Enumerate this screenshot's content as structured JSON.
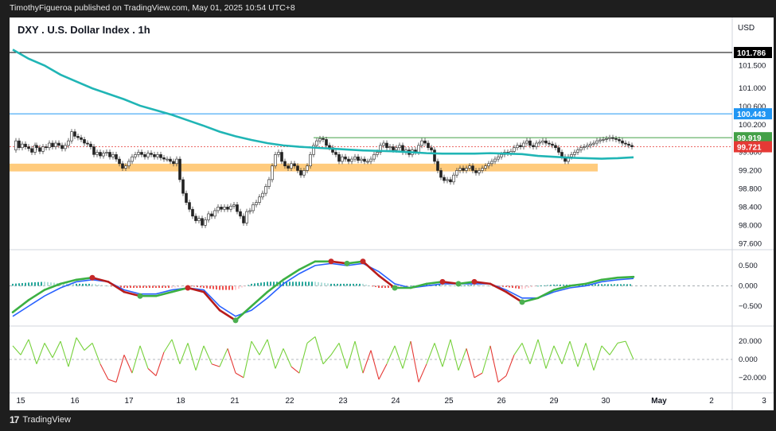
{
  "header": {
    "published": "TimothyFigueroa published on TradingView.com, May 01, 2025 10:54 UTC+8"
  },
  "footer": {
    "brand": "TradingView"
  },
  "chart_data": [
    {
      "type": "line",
      "title": "DXY . U.S. Dollar Index . 1h",
      "currency": "USD",
      "x_ticks": [
        "15",
        "16",
        "17",
        "18",
        "21",
        "22",
        "23",
        "24",
        "25",
        "26",
        "29",
        "30",
        "May",
        "2",
        "3"
      ],
      "y_ticks": [
        101.5,
        101.0,
        100.6,
        100.2,
        99.6,
        99.2,
        98.8,
        98.4,
        98.0,
        97.6
      ],
      "y_tick_labels": [
        "101.500",
        "101.000",
        "100.600",
        "100.200",
        "99.600",
        "99.200",
        "98.800",
        "98.400",
        "98.000",
        "97.600"
      ],
      "ylim": [
        97.5,
        102.1
      ],
      "price_labels": [
        {
          "value": 101.786,
          "text": "101.786",
          "color": "#000000"
        },
        {
          "value": 100.443,
          "text": "100.443",
          "color": "#2196f3"
        },
        {
          "value": 99.919,
          "text": "99.919",
          "color": "#43a047"
        },
        {
          "value": 99.721,
          "text": "99.721",
          "color": "#e53935"
        }
      ],
      "support_zone": {
        "low": 99.18,
        "high": 99.35,
        "color": "#ffc266"
      },
      "series": [
        {
          "kind": "close",
          "x": [
            0,
            4,
            8,
            12,
            16,
            20,
            24,
            28,
            30,
            34,
            38,
            42,
            46,
            50,
            54,
            58,
            62,
            66,
            70,
            74,
            78,
            82,
            86,
            90,
            94,
            98,
            102,
            106,
            110,
            114,
            118,
            122,
            126,
            130,
            134,
            138,
            142,
            146,
            150,
            154,
            158,
            162,
            166,
            170,
            174,
            178,
            182,
            186,
            190,
            194,
            198,
            202,
            206,
            210,
            214,
            218,
            222,
            226,
            230,
            234,
            238,
            242,
            246,
            250,
            254,
            258,
            262,
            266,
            270,
            274,
            278,
            282,
            286,
            290,
            294,
            298,
            302,
            306,
            310,
            314,
            318,
            322,
            326,
            330,
            334,
            338,
            342,
            346,
            350,
            354,
            358,
            362,
            366,
            370,
            374,
            378,
            382,
            386,
            390,
            394,
            398,
            402,
            406,
            410,
            414,
            418,
            422,
            426,
            430,
            434,
            438,
            442,
            446,
            450,
            454,
            458,
            462,
            466,
            470,
            474,
            478,
            482,
            486,
            490,
            494,
            498,
            502,
            506,
            510,
            514,
            518,
            522,
            526,
            530,
            534,
            538,
            542,
            546,
            550,
            554,
            558,
            562,
            566,
            570,
            574,
            578,
            582,
            586,
            590,
            594,
            598,
            602,
            606,
            610,
            614,
            618,
            622,
            626,
            630,
            634,
            638,
            642,
            646,
            650,
            654,
            658,
            662,
            666,
            670,
            674,
            678,
            682,
            686,
            690,
            694,
            698,
            702,
            706,
            710,
            714,
            718,
            722,
            726,
            730,
            734,
            738,
            742,
            746,
            750,
            754,
            758,
            762,
            766,
            770,
            774,
            778
          ],
          "values": [
            99.65,
            99.85,
            99.7,
            99.78,
            99.72,
            99.68,
            99.6,
            99.75,
            99.7,
            99.62,
            99.72,
            99.7,
            99.8,
            99.72,
            99.8,
            99.75,
            99.68,
            99.75,
            99.85,
            100.05,
            99.95,
            99.92,
            99.88,
            99.8,
            99.78,
            99.72,
            99.55,
            99.6,
            99.52,
            99.58,
            99.6,
            99.5,
            99.55,
            99.45,
            99.35,
            99.25,
            99.3,
            99.4,
            99.5,
            99.55,
            99.6,
            99.55,
            99.5,
            99.58,
            99.55,
            99.5,
            99.55,
            99.48,
            99.45,
            99.45,
            99.4,
            99.35,
            99.45,
            99.0,
            98.7,
            98.5,
            98.35,
            98.2,
            98.1,
            98.15,
            98.0,
            98.12,
            98.25,
            98.2,
            98.32,
            98.4,
            98.35,
            98.4,
            98.35,
            98.42,
            98.45,
            98.3,
            98.2,
            98.05,
            98.3,
            98.32,
            98.45,
            98.5,
            98.62,
            98.7,
            98.85,
            99.0,
            99.3,
            99.55,
            99.6,
            99.4,
            99.3,
            99.25,
            99.35,
            99.3,
            99.2,
            99.1,
            99.2,
            99.3,
            99.55,
            99.75,
            99.85,
            99.9,
            99.88,
            99.75,
            99.7,
            99.6,
            99.55,
            99.4,
            99.5,
            99.45,
            99.4,
            99.45,
            99.5,
            99.42,
            99.45,
            99.4,
            99.4,
            99.45,
            99.55,
            99.6,
            99.75,
            99.8,
            99.7,
            99.72,
            99.65,
            99.7,
            99.75,
            99.6,
            99.65,
            99.55,
            99.65,
            99.6,
            99.75,
            99.85,
            99.8,
            99.7,
            99.65,
            99.4,
            99.2,
            99.05,
            98.98,
            99.0,
            98.95,
            99.1,
            99.2,
            99.25,
            99.2,
            99.25,
            99.3,
            99.2,
            99.15,
            99.2,
            99.25,
            99.3,
            99.35,
            99.4,
            99.45,
            99.5,
            99.55,
            99.6,
            99.58,
            99.62,
            99.7,
            99.75,
            99.72,
            99.8,
            99.85,
            99.75,
            99.72,
            99.8,
            99.82,
            99.85,
            99.8,
            99.78,
            99.75,
            99.7,
            99.6,
            99.5,
            99.4,
            99.5,
            99.55,
            99.6,
            99.65,
            99.7,
            99.72,
            99.75,
            99.78,
            99.8,
            99.85,
            99.87,
            99.88,
            99.9,
            99.92,
            99.9,
            99.88,
            99.85,
            99.8,
            99.78,
            99.75,
            99.72
          ]
        },
        {
          "kind": "moving_average",
          "color": "#20b5b5",
          "x": [
            0,
            20,
            40,
            60,
            80,
            100,
            120,
            140,
            160,
            180,
            200,
            220,
            240,
            260,
            280,
            300,
            320,
            340,
            360,
            380,
            400,
            420,
            440,
            460,
            480,
            500,
            520,
            540,
            560,
            580,
            600,
            620,
            640,
            660,
            680,
            700,
            720,
            740,
            760,
            780
          ],
          "values": [
            101.85,
            101.65,
            101.5,
            101.3,
            101.15,
            101.0,
            100.88,
            100.76,
            100.62,
            100.52,
            100.42,
            100.3,
            100.18,
            100.05,
            99.95,
            99.87,
            99.8,
            99.75,
            99.72,
            99.7,
            99.68,
            99.66,
            99.64,
            99.63,
            99.62,
            99.6,
            99.58,
            99.57,
            99.57,
            99.57,
            99.58,
            99.57,
            99.56,
            99.52,
            99.5,
            99.48,
            99.47,
            99.46,
            99.47,
            99.49
          ]
        }
      ]
    },
    {
      "type": "line",
      "title": "",
      "y_ticks": [
        0.5,
        0.0,
        -0.5
      ],
      "y_tick_labels": [
        "0.500",
        "0.000",
        "−0.500"
      ],
      "ylim": [
        -0.95,
        0.85
      ],
      "x": [
        0,
        20,
        40,
        60,
        80,
        100,
        120,
        140,
        160,
        180,
        200,
        220,
        240,
        260,
        280,
        300,
        320,
        340,
        360,
        380,
        400,
        420,
        440,
        460,
        480,
        500,
        520,
        540,
        560,
        580,
        600,
        620,
        640,
        660,
        680,
        700,
        720,
        740,
        760,
        780
      ],
      "series": [
        {
          "kind": "signal",
          "color": "#2962ff",
          "values": [
            -0.75,
            -0.5,
            -0.25,
            -0.05,
            0.1,
            0.15,
            0.1,
            -0.1,
            -0.2,
            -0.2,
            -0.1,
            -0.05,
            -0.1,
            -0.5,
            -0.75,
            -0.6,
            -0.3,
            0.05,
            0.3,
            0.5,
            0.55,
            0.5,
            0.55,
            0.35,
            0.05,
            -0.05,
            0.0,
            0.05,
            0.05,
            0.05,
            0.05,
            -0.1,
            -0.3,
            -0.3,
            -0.15,
            -0.05,
            0.0,
            0.1,
            0.15,
            0.18
          ]
        },
        {
          "kind": "macd",
          "color": "#3cb043",
          "values": [
            -0.65,
            -0.35,
            -0.1,
            0.05,
            0.15,
            0.2,
            0.1,
            -0.15,
            -0.25,
            -0.25,
            -0.15,
            -0.05,
            -0.15,
            -0.6,
            -0.85,
            -0.5,
            -0.15,
            0.15,
            0.4,
            0.6,
            0.6,
            0.55,
            0.6,
            0.25,
            -0.05,
            -0.05,
            0.05,
            0.1,
            0.05,
            0.1,
            0.05,
            -0.15,
            -0.4,
            -0.3,
            -0.1,
            0.0,
            0.05,
            0.15,
            0.2,
            0.22
          ]
        },
        {
          "kind": "histogram",
          "values": [
            0.05,
            0.08,
            0.1,
            0.06,
            0.05,
            0.05,
            0.0,
            -0.05,
            -0.05,
            -0.05,
            -0.05,
            0.0,
            -0.05,
            -0.1,
            -0.1,
            0.05,
            0.1,
            0.1,
            0.1,
            0.1,
            0.05,
            0.05,
            0.05,
            -0.05,
            -0.05,
            0.0,
            0.03,
            0.03,
            0.0,
            0.03,
            0.0,
            -0.03,
            -0.08,
            0.0,
            0.03,
            0.03,
            0.04,
            0.04,
            0.04,
            0.04
          ]
        }
      ]
    },
    {
      "type": "line",
      "title": "",
      "y_ticks": [
        20.0,
        0.0,
        -20.0
      ],
      "y_tick_labels": [
        "20.000",
        "0.000",
        "−20.000"
      ],
      "ylim": [
        -35,
        35
      ],
      "x": [
        0,
        10,
        20,
        30,
        40,
        50,
        60,
        70,
        80,
        90,
        100,
        110,
        120,
        130,
        140,
        150,
        160,
        170,
        180,
        190,
        200,
        210,
        220,
        230,
        240,
        250,
        260,
        270,
        280,
        290,
        300,
        310,
        320,
        330,
        340,
        350,
        360,
        370,
        380,
        390,
        400,
        410,
        420,
        430,
        440,
        450,
        460,
        470,
        480,
        490,
        500,
        510,
        520,
        530,
        540,
        550,
        560,
        570,
        580,
        590,
        600,
        610,
        620,
        630,
        640,
        650,
        660,
        670,
        680,
        690,
        700,
        710,
        720,
        730,
        740,
        750,
        760,
        770,
        780
      ],
      "values": [
        15,
        5,
        22,
        -5,
        18,
        2,
        20,
        -8,
        24,
        10,
        18,
        -5,
        -22,
        -25,
        5,
        -15,
        15,
        -10,
        -18,
        8,
        22,
        -5,
        18,
        -12,
        15,
        -5,
        -8,
        12,
        -15,
        -20,
        20,
        5,
        22,
        -10,
        12,
        -8,
        -15,
        18,
        25,
        -5,
        5,
        18,
        -10,
        20,
        -15,
        10,
        -22,
        -5,
        15,
        -10,
        20,
        -25,
        -5,
        18,
        -8,
        22,
        -12,
        12,
        -20,
        -15,
        15,
        -25,
        -18,
        5,
        18,
        -5,
        22,
        -10,
        15,
        -5,
        20,
        -8,
        18,
        -12,
        15,
        5,
        18,
        20,
        0
      ]
    }
  ]
}
